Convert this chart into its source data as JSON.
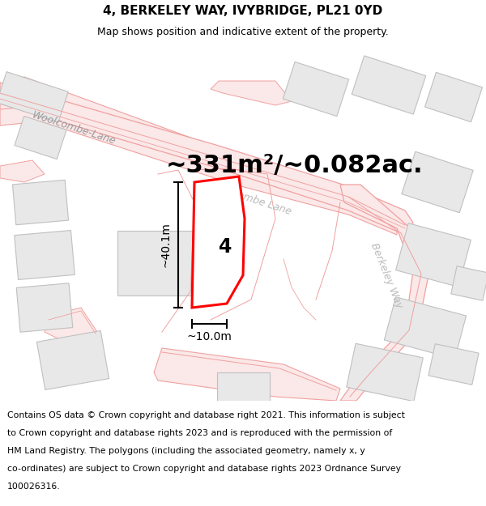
{
  "title": "4, BERKELEY WAY, IVYBRIDGE, PL21 0YD",
  "subtitle": "Map shows position and indicative extent of the property.",
  "area_text": "~331m²/~0.082ac.",
  "width_text": "~10.0m",
  "height_text": "~40.1m",
  "label": "4",
  "footer_lines": [
    "Contains OS data © Crown copyright and database right 2021. This information is subject",
    "to Crown copyright and database rights 2023 and is reproduced with the permission of",
    "HM Land Registry. The polygons (including the associated geometry, namely x, y",
    "co-ordinates) are subject to Crown copyright and database rights 2023 Ordnance Survey",
    "100026316."
  ],
  "bg_color": "#f2eeee",
  "map_bg": "#f8f5f5",
  "plot_color": "#ff0000",
  "plot_fill": "#ffffff",
  "road_stroke": "#f0a0a0",
  "road_fill": "#fbe8e8",
  "building_stroke": "#c0c0c0",
  "building_fill": "#e8e8e8",
  "title_fontsize": 11,
  "subtitle_fontsize": 9,
  "area_fontsize": 22,
  "label_fontsize": 17,
  "dim_fontsize": 10,
  "footer_fontsize": 7.8,
  "road_label_color": "#aaaaaa",
  "road_label_size": 9
}
